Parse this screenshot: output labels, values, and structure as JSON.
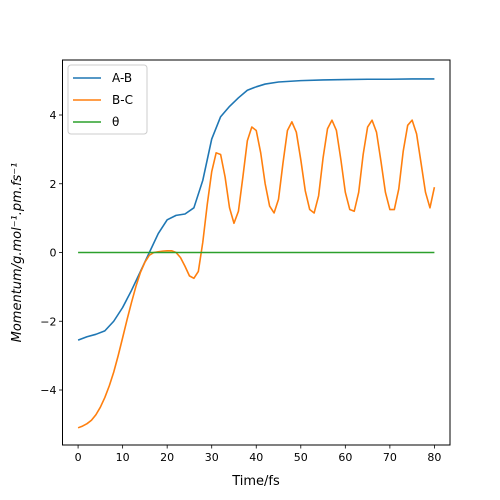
{
  "chart_data": {
    "type": "line",
    "xlabel": "Time/fs",
    "ylabel": "Momentum/g.mol⁻¹.pm.fs⁻¹",
    "xlim": [
      -3.5,
      83.5
    ],
    "ylim": [
      -5.6,
      5.6
    ],
    "xticks": [
      0,
      10,
      20,
      30,
      40,
      50,
      60,
      70,
      80
    ],
    "yticks": [
      -4,
      -2,
      0,
      2,
      4
    ],
    "ytick_labels": [
      "−4",
      "−2",
      "0",
      "2",
      "4"
    ],
    "grid": false,
    "legend_position": "top-left",
    "series": [
      {
        "name": "A-B",
        "color": "#1f77b4",
        "x": [
          0,
          2,
          4,
          6,
          8,
          10,
          12,
          14,
          16,
          18,
          20,
          22,
          24,
          26,
          28,
          30,
          32,
          34,
          36,
          38,
          40,
          42,
          45,
          50,
          55,
          60,
          65,
          70,
          75,
          80
        ],
        "y": [
          -2.55,
          -2.45,
          -2.38,
          -2.28,
          -2.0,
          -1.6,
          -1.1,
          -0.55,
          0.0,
          0.55,
          0.95,
          1.08,
          1.12,
          1.3,
          2.1,
          3.3,
          3.95,
          4.25,
          4.5,
          4.72,
          4.82,
          4.9,
          4.96,
          5.0,
          5.02,
          5.03,
          5.04,
          5.04,
          5.05,
          5.05
        ]
      },
      {
        "name": "B-C",
        "color": "#ff7f0e",
        "x": [
          0,
          1,
          2,
          3,
          4,
          5,
          6,
          7,
          8,
          9,
          10,
          11,
          12,
          13,
          14,
          15,
          16,
          17,
          18,
          19,
          20,
          21,
          22,
          23,
          24,
          25,
          26,
          27,
          28,
          29,
          30,
          31,
          32,
          33,
          34,
          35,
          36,
          37,
          38,
          39,
          40,
          41,
          42,
          43,
          44,
          45,
          46,
          47,
          48,
          49,
          50,
          51,
          52,
          53,
          54,
          55,
          56,
          57,
          58,
          59,
          60,
          61,
          62,
          63,
          64,
          65,
          66,
          67,
          68,
          69,
          70,
          71,
          72,
          73,
          74,
          75,
          76,
          77,
          78,
          79,
          80
        ],
        "y": [
          -5.1,
          -5.05,
          -4.98,
          -4.88,
          -4.72,
          -4.5,
          -4.22,
          -3.88,
          -3.48,
          -3.0,
          -2.48,
          -1.95,
          -1.45,
          -0.98,
          -0.58,
          -0.28,
          -0.08,
          0.0,
          0.02,
          0.04,
          0.05,
          0.05,
          0.0,
          -0.15,
          -0.4,
          -0.68,
          -0.75,
          -0.55,
          0.3,
          1.4,
          2.35,
          2.9,
          2.85,
          2.2,
          1.3,
          0.85,
          1.2,
          2.2,
          3.25,
          3.65,
          3.55,
          2.9,
          2.0,
          1.35,
          1.15,
          1.55,
          2.6,
          3.55,
          3.8,
          3.5,
          2.7,
          1.8,
          1.25,
          1.15,
          1.65,
          2.75,
          3.6,
          3.85,
          3.55,
          2.7,
          1.75,
          1.25,
          1.2,
          1.75,
          2.85,
          3.65,
          3.85,
          3.5,
          2.65,
          1.75,
          1.25,
          1.25,
          1.85,
          2.95,
          3.7,
          3.85,
          3.45,
          2.6,
          1.75,
          1.3,
          1.9
        ]
      },
      {
        "name": "θ",
        "color": "#2ca02c",
        "x": [
          0,
          80
        ],
        "y": [
          0,
          0
        ]
      }
    ]
  }
}
